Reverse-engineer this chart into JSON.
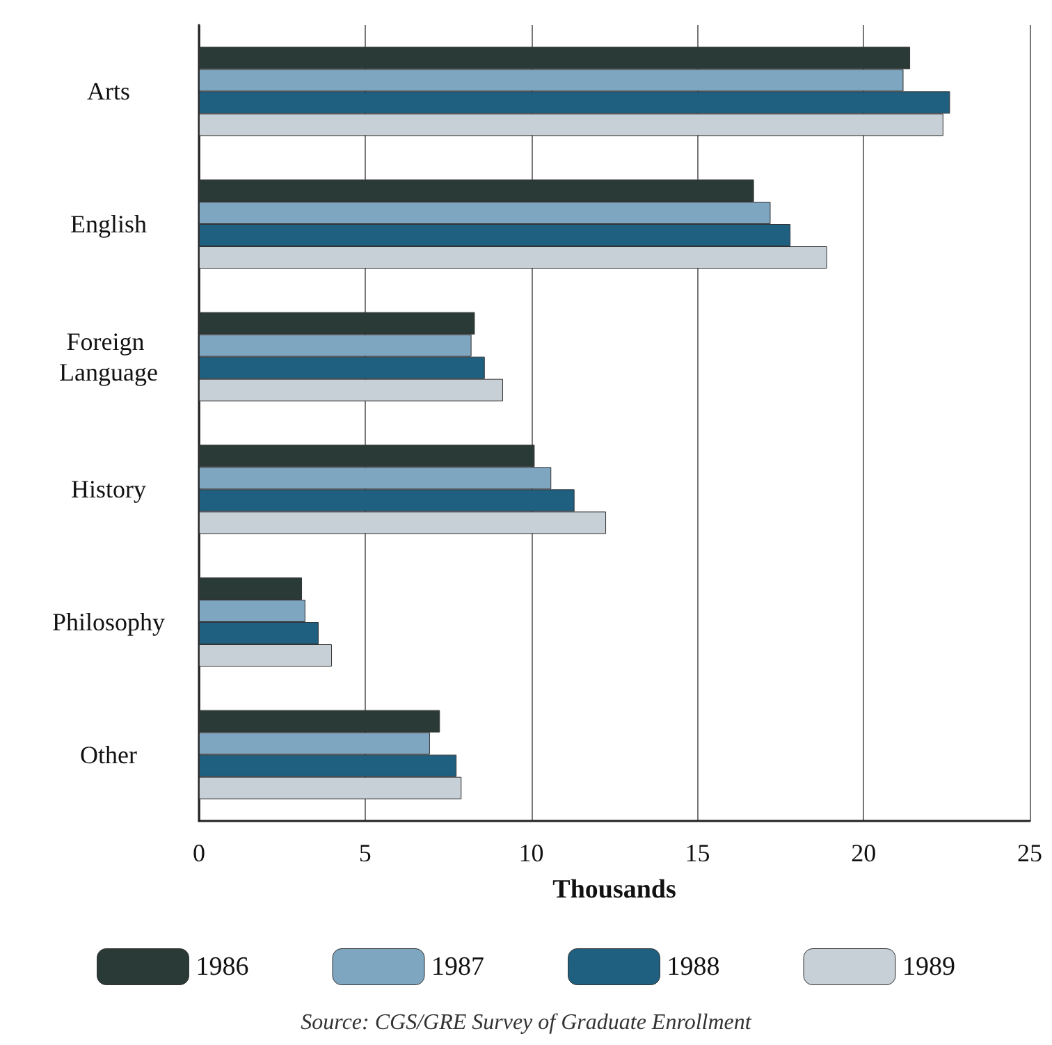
{
  "chart_data": {
    "type": "bar",
    "orientation": "horizontal",
    "xlabel": "Thousands",
    "categories": [
      "Arts",
      "English",
      "Foreign Language",
      "History",
      "Philosophy",
      "Other"
    ],
    "series": [
      {
        "name": "1986",
        "color": "#2a3a36",
        "values": [
          21.4,
          16.7,
          8.3,
          10.1,
          3.1,
          7.25
        ]
      },
      {
        "name": "1987",
        "color": "#7fa6c0",
        "values": [
          21.2,
          17.2,
          8.2,
          10.6,
          3.2,
          6.95
        ]
      },
      {
        "name": "1988",
        "color": "#1f5f80",
        "values": [
          22.6,
          17.8,
          8.6,
          11.3,
          3.6,
          7.75
        ]
      },
      {
        "name": "1989",
        "color": "#c7d0d6",
        "values": [
          22.4,
          18.9,
          9.15,
          12.25,
          4.0,
          7.9
        ]
      }
    ],
    "xlim": [
      0,
      25
    ],
    "xticks": [
      0,
      5,
      10,
      15,
      20,
      25
    ],
    "grid": "x",
    "legend": "bottom",
    "annotations": [
      "Source: CGS/GRE Survey of Graduate Enrollment"
    ]
  }
}
